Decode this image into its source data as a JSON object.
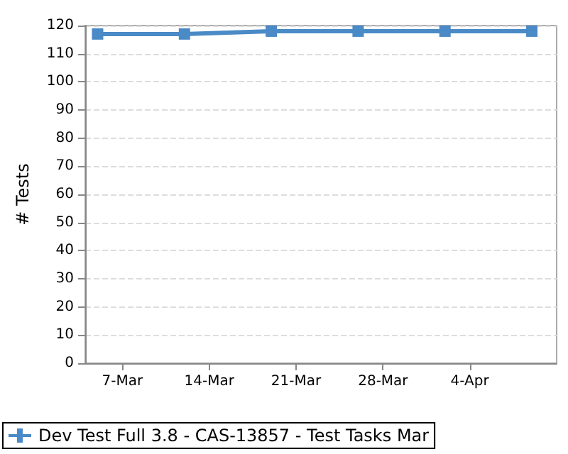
{
  "chart_data": {
    "type": "line",
    "ylabel": "# Tests",
    "x": [
      "--03-05",
      "--03-12",
      "--03-19",
      "--03-26",
      "--04-02",
      "--04-09"
    ],
    "series": [
      {
        "name": "Dev Test Full 3.8 - CAS-13857 - Test Tasks Mar",
        "color": "#4a8ac6",
        "values": [
          117,
          117,
          118,
          118,
          118,
          118
        ]
      }
    ],
    "xlim": [
      "--03-04",
      "--04-11"
    ],
    "xticks": [
      {
        "value": "--03-07",
        "label": "7-Mar"
      },
      {
        "value": "--03-14",
        "label": "14-Mar"
      },
      {
        "value": "--03-21",
        "label": "21-Mar"
      },
      {
        "value": "--03-28",
        "label": "28-Mar"
      },
      {
        "value": "--04-04",
        "label": "4-Apr"
      }
    ],
    "ylim": [
      0,
      120
    ],
    "yticks": [
      0,
      10,
      20,
      30,
      40,
      50,
      60,
      70,
      80,
      90,
      100,
      110,
      120
    ],
    "grid": "y",
    "legend": "bottom",
    "marker": "square",
    "line_style": "solid"
  }
}
